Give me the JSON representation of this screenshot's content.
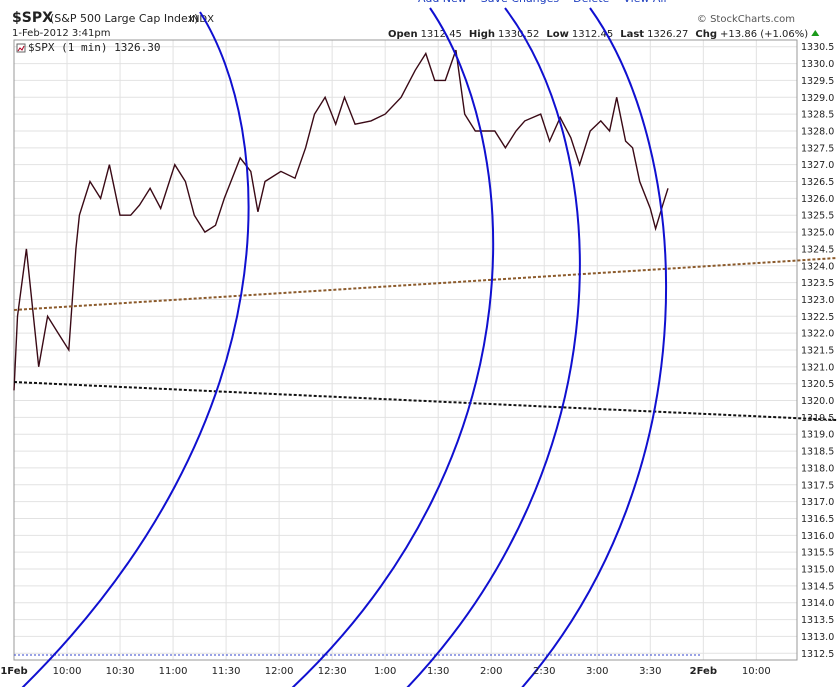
{
  "header": {
    "symbol": "$SPX",
    "name": "(S&P 500 Large Cap Index)",
    "exchange": "INDX",
    "copyright": "© StockCharts.com",
    "datetime": "1-Feb-2012 3:41pm",
    "stats": [
      {
        "label": "Open",
        "value": "1312.45"
      },
      {
        "label": "High",
        "value": "1330.52"
      },
      {
        "label": "Low",
        "value": "1312.45"
      },
      {
        "label": "Last",
        "value": "1326.27"
      },
      {
        "label": "Chg",
        "value": "+13.86 (+1.06%)"
      }
    ],
    "toolbar": [
      "Add New",
      "Save Changes",
      "Delete",
      "View All"
    ]
  },
  "chart_data": {
    "type": "line",
    "series": [
      {
        "name": "$SPX (1 min)",
        "last_label": "1326.30",
        "color": "#3a0a16",
        "x": [
          0,
          2,
          7,
          14,
          19,
          25,
          31,
          35,
          37,
          43,
          49,
          54,
          60,
          66,
          71,
          77,
          83,
          91,
          97,
          102,
          108,
          114,
          119,
          128,
          134,
          138,
          142,
          151,
          159,
          165,
          170,
          176,
          182,
          187,
          193,
          202,
          210,
          219,
          227,
          233,
          238,
          244,
          250,
          255,
          261,
          267,
          272,
          278,
          284,
          289,
          298,
          303,
          309,
          315,
          320,
          326,
          332,
          337,
          341,
          346,
          350,
          354,
          360,
          363,
          367,
          370
        ],
        "values": [
          1320.3,
          1322.5,
          1324.5,
          1321.0,
          1322.5,
          1322.0,
          1321.5,
          1324.5,
          1325.5,
          1326.5,
          1326.0,
          1327.0,
          1325.5,
          1325.5,
          1325.8,
          1326.3,
          1325.7,
          1327.0,
          1326.5,
          1325.5,
          1325.0,
          1325.2,
          1326.0,
          1327.2,
          1326.8,
          1325.6,
          1326.5,
          1326.8,
          1326.6,
          1327.5,
          1328.5,
          1329.0,
          1328.2,
          1329.0,
          1328.2,
          1328.3,
          1328.5,
          1329.0,
          1329.8,
          1330.3,
          1329.5,
          1329.5,
          1330.4,
          1328.5,
          1328.0,
          1328.0,
          1328.0,
          1327.5,
          1328.0,
          1328.3,
          1328.5,
          1327.7,
          1328.4,
          1327.8,
          1327.0,
          1328.0,
          1328.3,
          1328.0,
          1329.0,
          1327.7,
          1327.5,
          1326.5,
          1325.7,
          1325.1,
          1325.8,
          1326.3
        ]
      }
    ],
    "xlim": [
      0,
      443
    ],
    "xticks": [
      {
        "value": 0,
        "label": "1Feb"
      },
      {
        "value": 30,
        "label": "10:00"
      },
      {
        "value": 60,
        "label": "10:30"
      },
      {
        "value": 90,
        "label": "11:00"
      },
      {
        "value": 120,
        "label": "11:30"
      },
      {
        "value": 150,
        "label": "12:00"
      },
      {
        "value": 180,
        "label": "12:30"
      },
      {
        "value": 210,
        "label": "1:00"
      },
      {
        "value": 240,
        "label": "1:30"
      },
      {
        "value": 270,
        "label": "2:00"
      },
      {
        "value": 300,
        "label": "2:30"
      },
      {
        "value": 330,
        "label": "3:00"
      },
      {
        "value": 360,
        "label": "3:30"
      },
      {
        "value": 390,
        "label": "2Feb"
      },
      {
        "value": 420,
        "label": "10:00"
      }
    ],
    "ylim": [
      1312.3,
      1330.7
    ],
    "yticks": [
      1312.5,
      {
        "value": 1313,
        "label": "1313.0"
      },
      1313.5,
      {
        "value": 1314,
        "label": "1314.0"
      },
      1314.5,
      {
        "value": 1315,
        "label": "1315.0"
      },
      1315.5,
      {
        "value": 1316,
        "label": "1316.0"
      },
      1316.5,
      {
        "value": 1317,
        "label": "1317.0"
      },
      1317.5,
      {
        "value": 1318,
        "label": "1318.0"
      },
      1318.5,
      {
        "value": 1319,
        "label": "1319.0"
      },
      1319.5,
      {
        "value": 1320,
        "label": "1320.0"
      },
      1320.5,
      {
        "value": 1321,
        "label": "1321.0"
      },
      1321.5,
      {
        "value": 1322,
        "label": "1322.0"
      },
      1322.5,
      {
        "value": 1323,
        "label": "1323.0"
      },
      1323.5,
      {
        "value": 1324,
        "label": "1324.0"
      },
      1324.5,
      {
        "value": 1325,
        "label": "1325.0"
      },
      1325.5,
      {
        "value": 1326,
        "label": "1326.0"
      },
      1326.5,
      {
        "value": 1327,
        "label": "1327.0"
      },
      1327.5,
      {
        "value": 1328,
        "label": "1328.0"
      },
      1328.5,
      {
        "value": 1329,
        "label": "1329.0"
      },
      1329.5,
      {
        "value": 1330,
        "label": "1330.0"
      },
      1330.5
    ],
    "grid": true
  }
}
